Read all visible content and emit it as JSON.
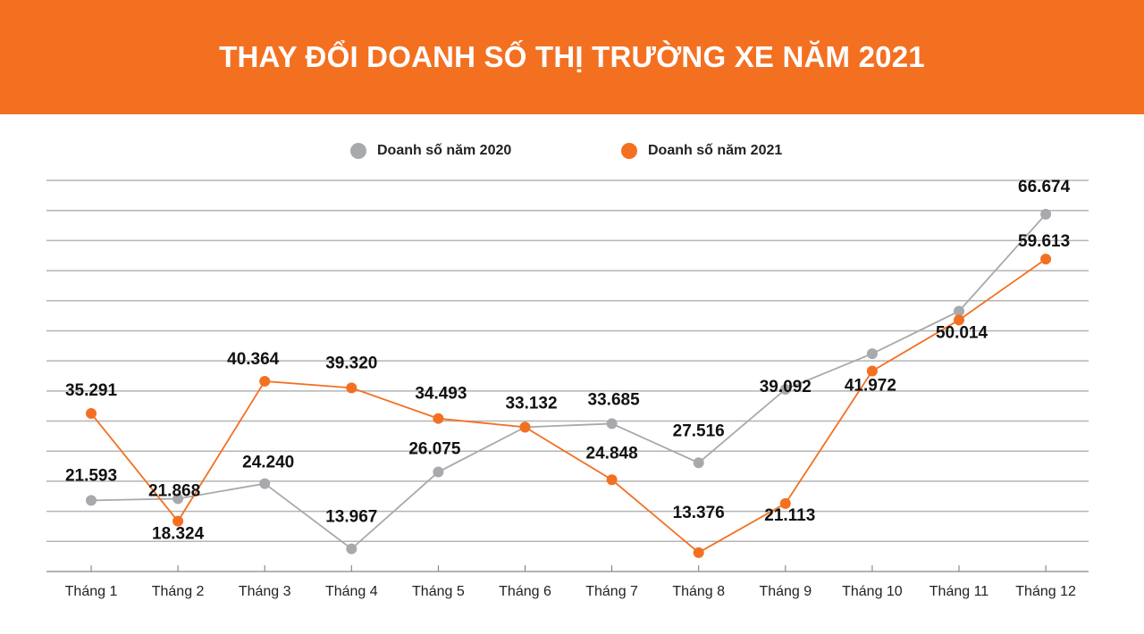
{
  "header": {
    "title": "THAY ĐỔI DOANH SỐ THỊ TRƯỜNG XE NĂM 2021"
  },
  "chart_data": {
    "type": "line",
    "title": "THAY ĐỔI DOANH SỐ THỊ TRƯỜNG XE NĂM 2021",
    "xlabel": "",
    "ylabel": "",
    "categories": [
      "Tháng 1",
      "Tháng 2",
      "Tháng 3",
      "Tháng 4",
      "Tháng 5",
      "Tháng 6",
      "Tháng 7",
      "Tháng 8",
      "Tháng 9",
      "Tháng 10",
      "Tháng 11",
      "Tháng 12"
    ],
    "ylim": [
      10.4,
      72
    ],
    "grid": true,
    "y_tick_labels_shown": false,
    "legend_position": "top",
    "series": [
      {
        "name": "Doanh số năm 2020",
        "color": "#A7A9AC",
        "values": [
          21.593,
          21.868,
          24.24,
          13.967,
          26.075,
          33.132,
          33.685,
          27.516,
          39.092,
          44.7,
          51.4,
          66.674
        ],
        "labels": [
          "21.593",
          "21.868",
          "24.240",
          "13.967",
          "26.075",
          "",
          "33.685",
          "27.516",
          "39.092",
          "",
          "",
          "66.674"
        ]
      },
      {
        "name": "Doanh số năm 2021",
        "color": "#F37021",
        "values": [
          35.291,
          18.324,
          40.364,
          39.32,
          34.493,
          33.132,
          24.848,
          13.376,
          21.113,
          41.972,
          50.014,
          59.613
        ],
        "labels": [
          "35.291",
          "18.324",
          "40.364",
          "39.320",
          "34.493",
          "33.132",
          "24.848",
          "13.376",
          "21.113",
          "41.972",
          "50.014",
          "59.613"
        ]
      }
    ]
  }
}
